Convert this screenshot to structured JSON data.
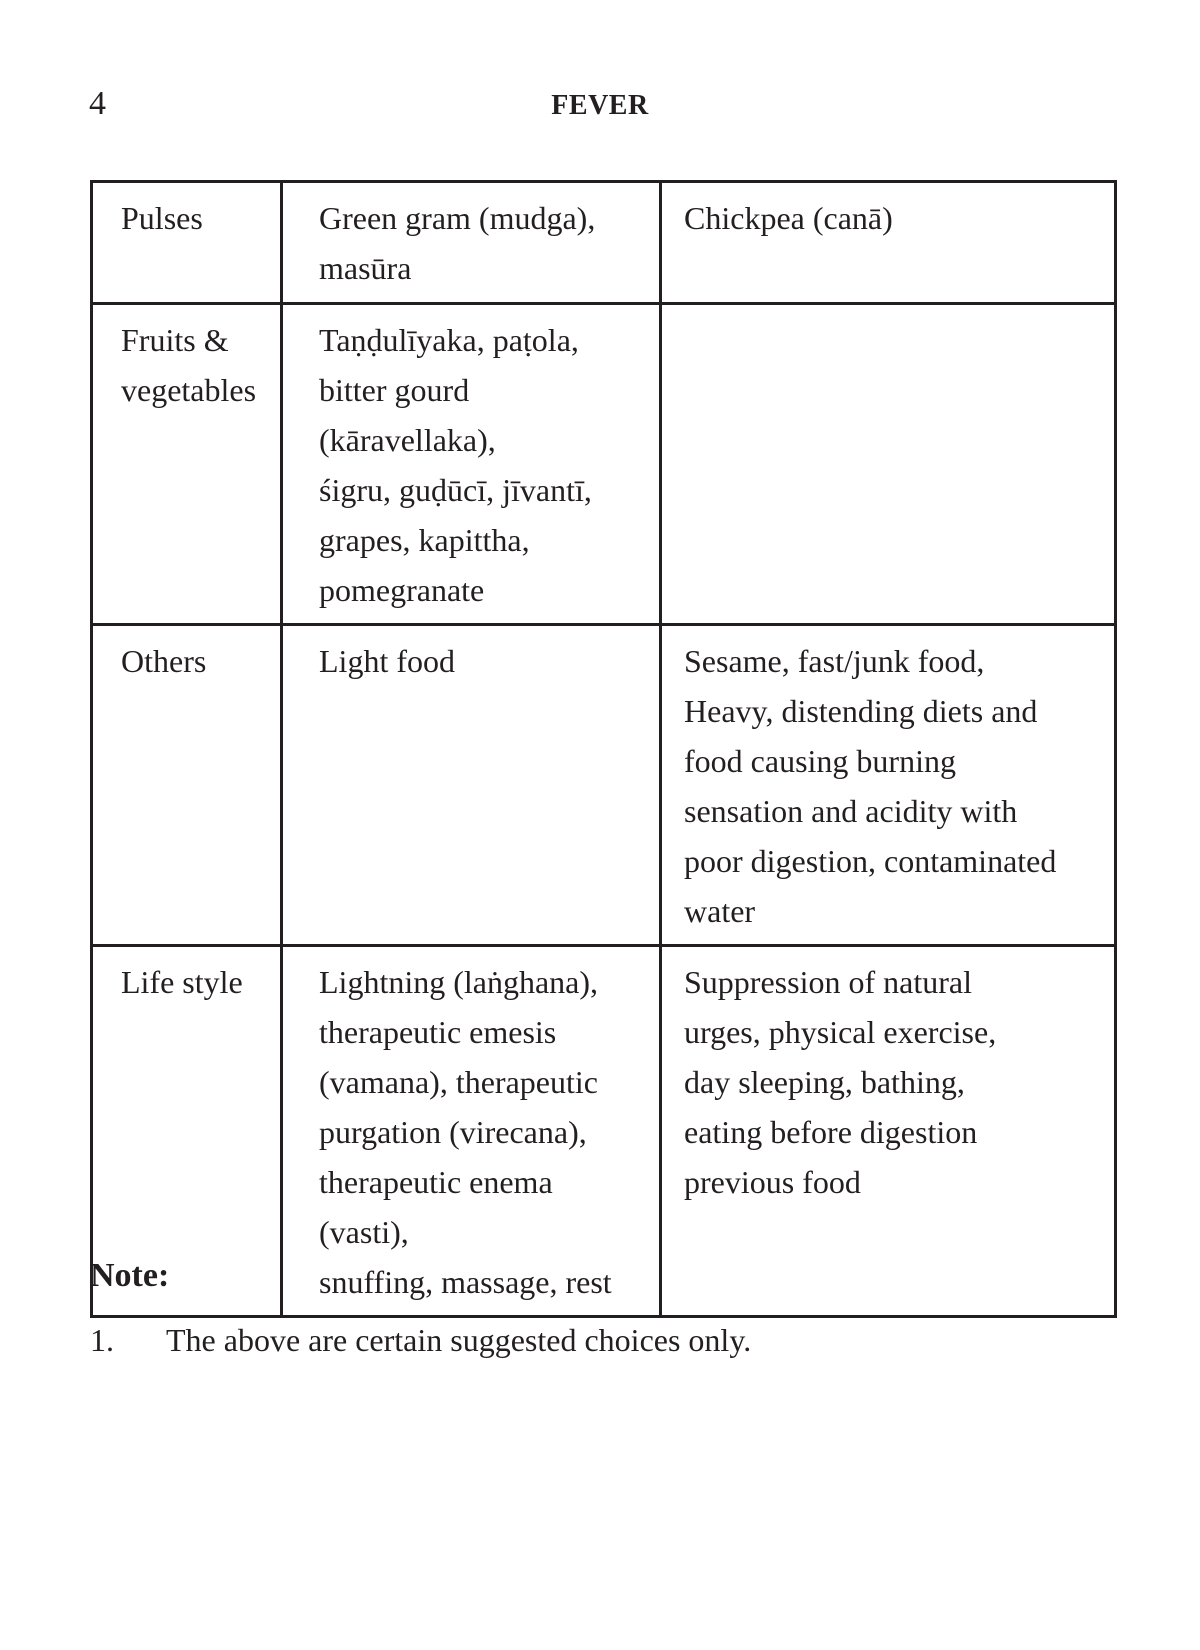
{
  "header": {
    "page_number": "4",
    "running_title": "FEVER"
  },
  "table": {
    "rows": [
      {
        "category": "Pulses",
        "col2": "Green gram (mudga),\nmasūra",
        "col3": "Chickpea (canā)"
      },
      {
        "category": "Fruits &\nvegetables",
        "col2": "Taṇḍulīyaka, paṭola,\nbitter gourd (kāravellaka),\nśigru, guḍūcī, jīvantī,\ngrapes, kapittha,\npomegranate",
        "col3": ""
      },
      {
        "category": "Others",
        "col2": "Light food",
        "col3": "Sesame, fast/junk food,\nHeavy, distending diets and\nfood causing burning\nsensation and acidity with\npoor digestion, contaminated\nwater"
      },
      {
        "category": "Life style",
        "col2": "Lightning (laṅghana),\ntherapeutic emesis\n(vamana), therapeutic\npurgation (virecana),\ntherapeutic enema (vasti),\nsnuffing, massage, rest",
        "col3": "Suppression of natural\nurges, physical exercise,\nday sleeping, bathing,\neating before digestion\nprevious food"
      }
    ]
  },
  "note": {
    "heading": "Note:",
    "items": [
      {
        "number": "1.",
        "text": "The above are certain suggested choices only."
      }
    ]
  }
}
